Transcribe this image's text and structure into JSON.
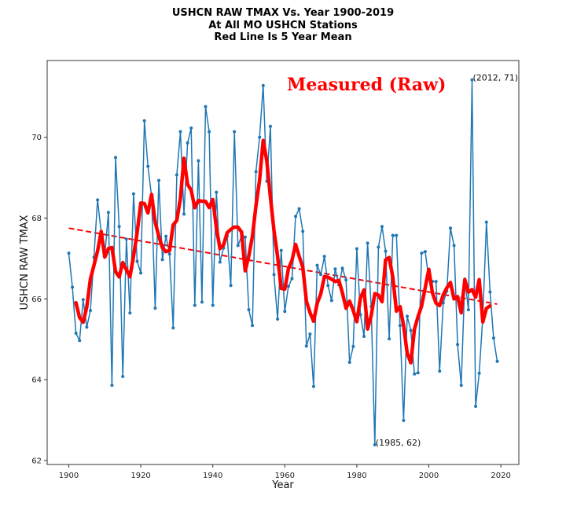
{
  "chart_data": {
    "type": "line",
    "title": [
      "USHCN RAW TMAX Vs. Year 1900-2019",
      "At All MO USHCN Stations",
      "Red Line Is 5 Year Mean"
    ],
    "xlabel": "Year",
    "ylabel": "USHCN RAW TMAX",
    "xlim": [
      1894,
      2025
    ],
    "ylim": [
      61.9,
      71.9
    ],
    "xticks": [
      1900,
      1920,
      1940,
      1960,
      1980,
      2000,
      2020
    ],
    "yticks": [
      62,
      64,
      66,
      68,
      70
    ],
    "grid": false,
    "overlay_text": "Measured (Raw)",
    "annotations": [
      {
        "text": "(2012, 71)",
        "x": 2012,
        "y": 71.42
      },
      {
        "text": "(1985, 62)",
        "x": 1985,
        "y": 62.39
      }
    ],
    "x": [
      1900,
      1901,
      1902,
      1903,
      1904,
      1905,
      1906,
      1907,
      1908,
      1909,
      1910,
      1911,
      1912,
      1913,
      1914,
      1915,
      1916,
      1917,
      1918,
      1919,
      1920,
      1921,
      1922,
      1923,
      1924,
      1925,
      1926,
      1927,
      1928,
      1929,
      1930,
      1931,
      1932,
      1933,
      1934,
      1935,
      1936,
      1937,
      1938,
      1939,
      1940,
      1941,
      1942,
      1943,
      1944,
      1945,
      1946,
      1947,
      1948,
      1949,
      1950,
      1951,
      1952,
      1953,
      1954,
      1955,
      1956,
      1957,
      1958,
      1959,
      1960,
      1961,
      1962,
      1963,
      1964,
      1965,
      1966,
      1967,
      1968,
      1969,
      1970,
      1971,
      1972,
      1973,
      1974,
      1975,
      1976,
      1977,
      1978,
      1979,
      1980,
      1981,
      1982,
      1983,
      1984,
      1985,
      1986,
      1987,
      1988,
      1989,
      1990,
      1991,
      1992,
      1993,
      1994,
      1995,
      1996,
      1997,
      1998,
      1999,
      2000,
      2001,
      2002,
      2003,
      2004,
      2005,
      2006,
      2007,
      2008,
      2009,
      2010,
      2011,
      2012,
      2013,
      2014,
      2015,
      2016,
      2017,
      2018,
      2019
    ],
    "series": [
      {
        "name": "USHCN RAW TMAX",
        "color": "#1f77b4",
        "style": "line-with-dots",
        "values": [
          67.13,
          66.29,
          65.15,
          64.97,
          65.98,
          65.3,
          65.71,
          67.03,
          68.45,
          67.65,
          67.07,
          68.14,
          63.86,
          69.5,
          67.79,
          64.08,
          67.48,
          65.65,
          68.6,
          66.93,
          66.64,
          70.41,
          69.28,
          68.54,
          65.77,
          68.93,
          66.97,
          67.55,
          67.11,
          65.28,
          69.07,
          70.14,
          68.1,
          69.86,
          70.23,
          65.84,
          69.42,
          65.92,
          70.76,
          70.14,
          65.84,
          68.64,
          66.91,
          67.26,
          67.55,
          66.33,
          70.14,
          67.32,
          67.55,
          67.53,
          65.73,
          65.34,
          69.15,
          70.0,
          71.28,
          68.91,
          70.27,
          66.6,
          65.5,
          67.2,
          65.69,
          66.31,
          66.5,
          68.04,
          68.23,
          67.67,
          64.83,
          65.13,
          63.83,
          66.83,
          66.6,
          67.05,
          66.33,
          65.96,
          66.74,
          66.35,
          66.76,
          66.47,
          64.43,
          64.82,
          67.24,
          65.61,
          65.07,
          67.38,
          65.81,
          62.39,
          67.28,
          67.79,
          67.18,
          65.01,
          67.57,
          67.57,
          65.34,
          62.99,
          65.57,
          65.22,
          64.14,
          64.17,
          67.13,
          67.17,
          66.49,
          66.43,
          66.43,
          64.21,
          65.9,
          66.19,
          67.75,
          67.32,
          64.87,
          63.86,
          66.49,
          65.73,
          71.42,
          63.34,
          64.16,
          65.57,
          67.9,
          66.17,
          65.03,
          64.45
        ]
      },
      {
        "name": "5 Year Mean",
        "color": "#ff0000",
        "style": "thick-line",
        "window": 5
      },
      {
        "name": "Linear Trend",
        "color": "#ff0000",
        "style": "dashed",
        "x": [
          1900,
          2019
        ],
        "values": [
          67.75,
          65.87
        ]
      }
    ]
  }
}
